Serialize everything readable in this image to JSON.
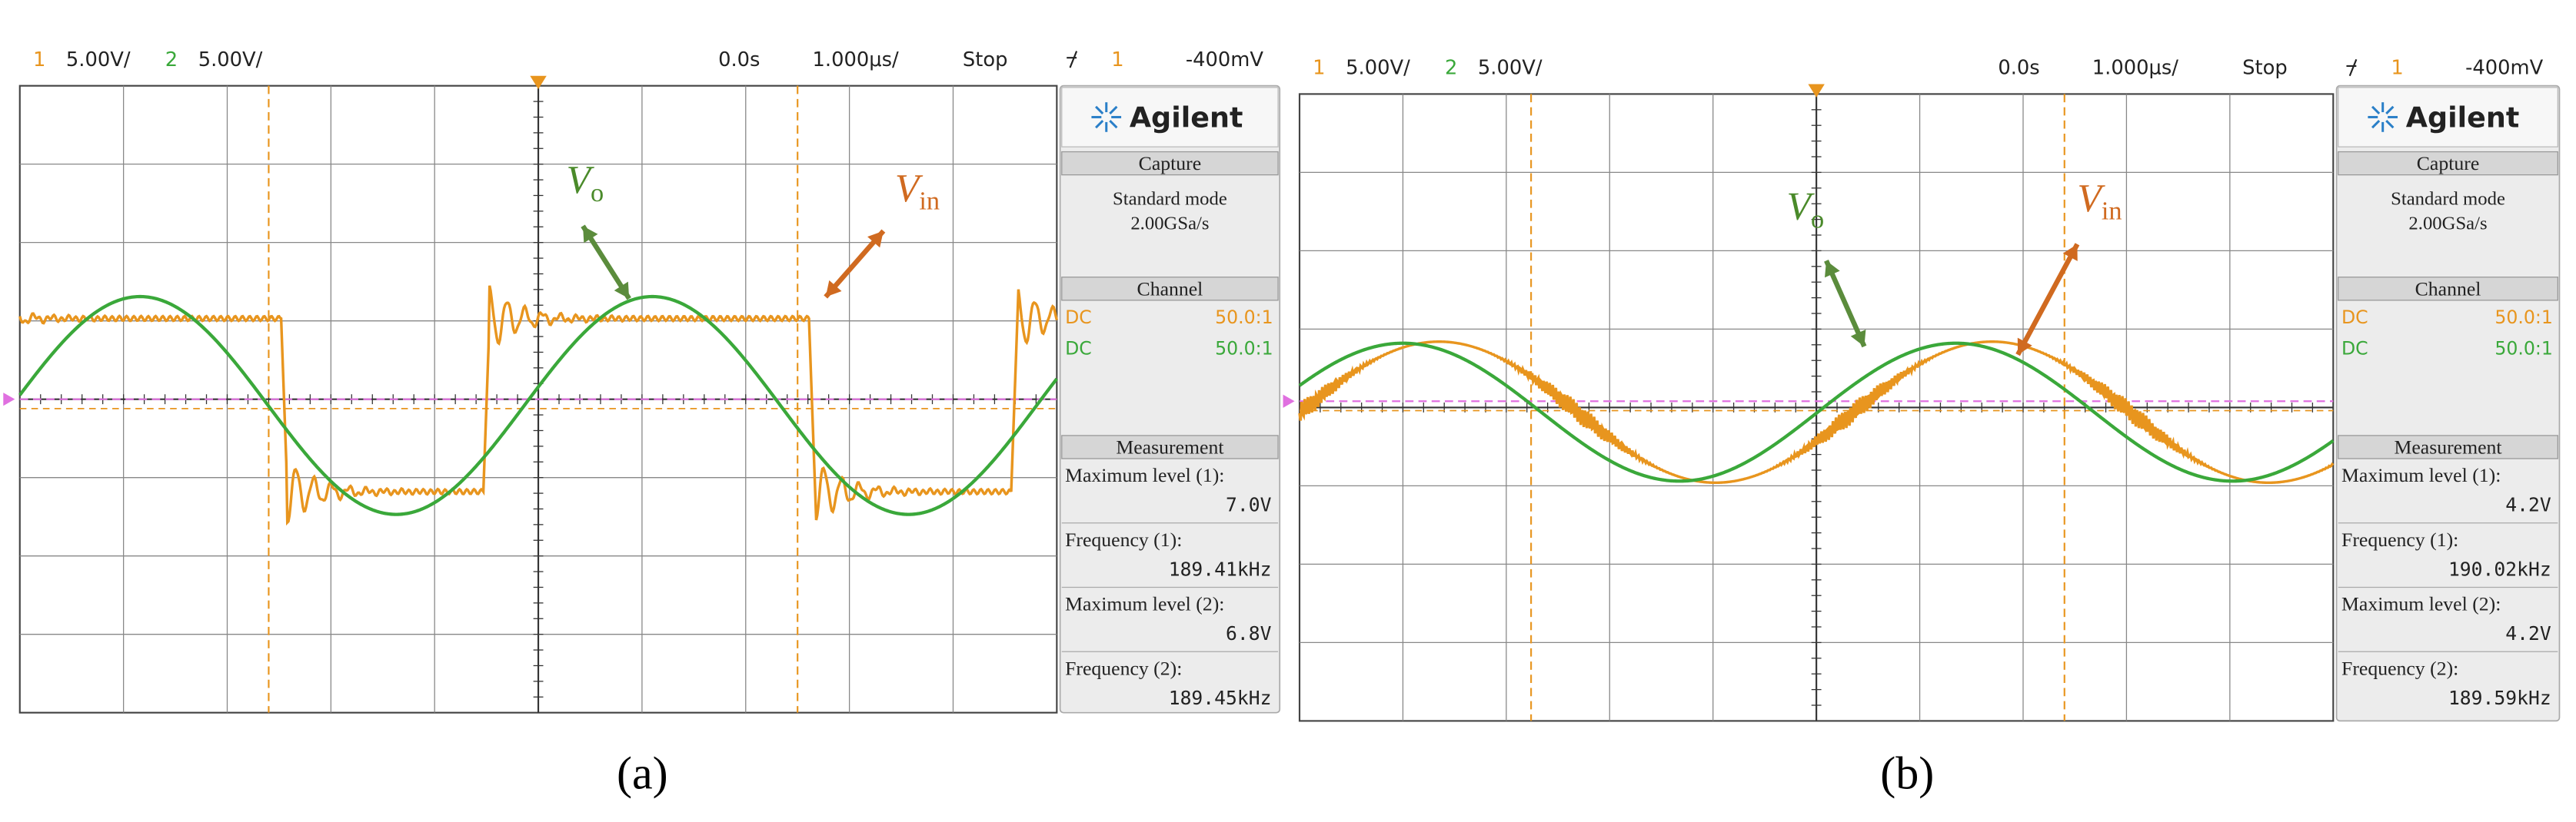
{
  "panels": [
    {
      "label": "(a)",
      "header": {
        "ch1": "1",
        "ch1_scale": "5.00V/",
        "ch2": "2",
        "ch2_scale": "5.00V/",
        "time": "0.0s",
        "timebase": "1.000μs/",
        "state": "Stop",
        "trig_ch": "1",
        "trig_level": "-400mV"
      },
      "sidebar": {
        "brand": "Agilent",
        "capture_title": "Capture",
        "mode": "Standard mode",
        "rate": "2.00GSa/s",
        "channel_title": "Channel",
        "channels": [
          {
            "coupling": "DC",
            "probe": "50.0:1"
          },
          {
            "coupling": "DC",
            "probe": "50.0:1"
          }
        ],
        "measurement_title": "Measurement",
        "measurements": [
          {
            "label": "Maximum level (1):",
            "value": "7.0V"
          },
          {
            "label": "Frequency (1):",
            "value": "189.41kHz"
          },
          {
            "label": "Maximum level (2):",
            "value": "6.8V"
          },
          {
            "label": "Frequency (2):",
            "value": "189.45kHz"
          }
        ]
      },
      "annotations": {
        "vo": {
          "main": "V",
          "sub": "o"
        },
        "vin": {
          "main": "V",
          "sub": "in"
        }
      }
    },
    {
      "label": "(b)",
      "header": {
        "ch1": "1",
        "ch1_scale": "5.00V/",
        "ch2": "2",
        "ch2_scale": "5.00V/",
        "time": "0.0s",
        "timebase": "1.000μs/",
        "state": "Stop",
        "trig_ch": "1",
        "trig_level": "-400mV"
      },
      "sidebar": {
        "brand": "Agilent",
        "capture_title": "Capture",
        "mode": "Standard mode",
        "rate": "2.00GSa/s",
        "channel_title": "Channel",
        "channels": [
          {
            "coupling": "DC",
            "probe": "50.0:1"
          },
          {
            "coupling": "DC",
            "probe": "50.0:1"
          }
        ],
        "measurement_title": "Measurement",
        "measurements": [
          {
            "label": "Maximum level (1):",
            "value": "4.2V"
          },
          {
            "label": "Frequency (1):",
            "value": "190.02kHz"
          },
          {
            "label": "Maximum level (2):",
            "value": "4.2V"
          },
          {
            "label": "Frequency (2):",
            "value": "189.59kHz"
          }
        ]
      },
      "annotations": {
        "vo": {
          "main": "V",
          "sub": "o"
        },
        "vin": {
          "main": "V",
          "sub": "in"
        }
      }
    }
  ]
}
